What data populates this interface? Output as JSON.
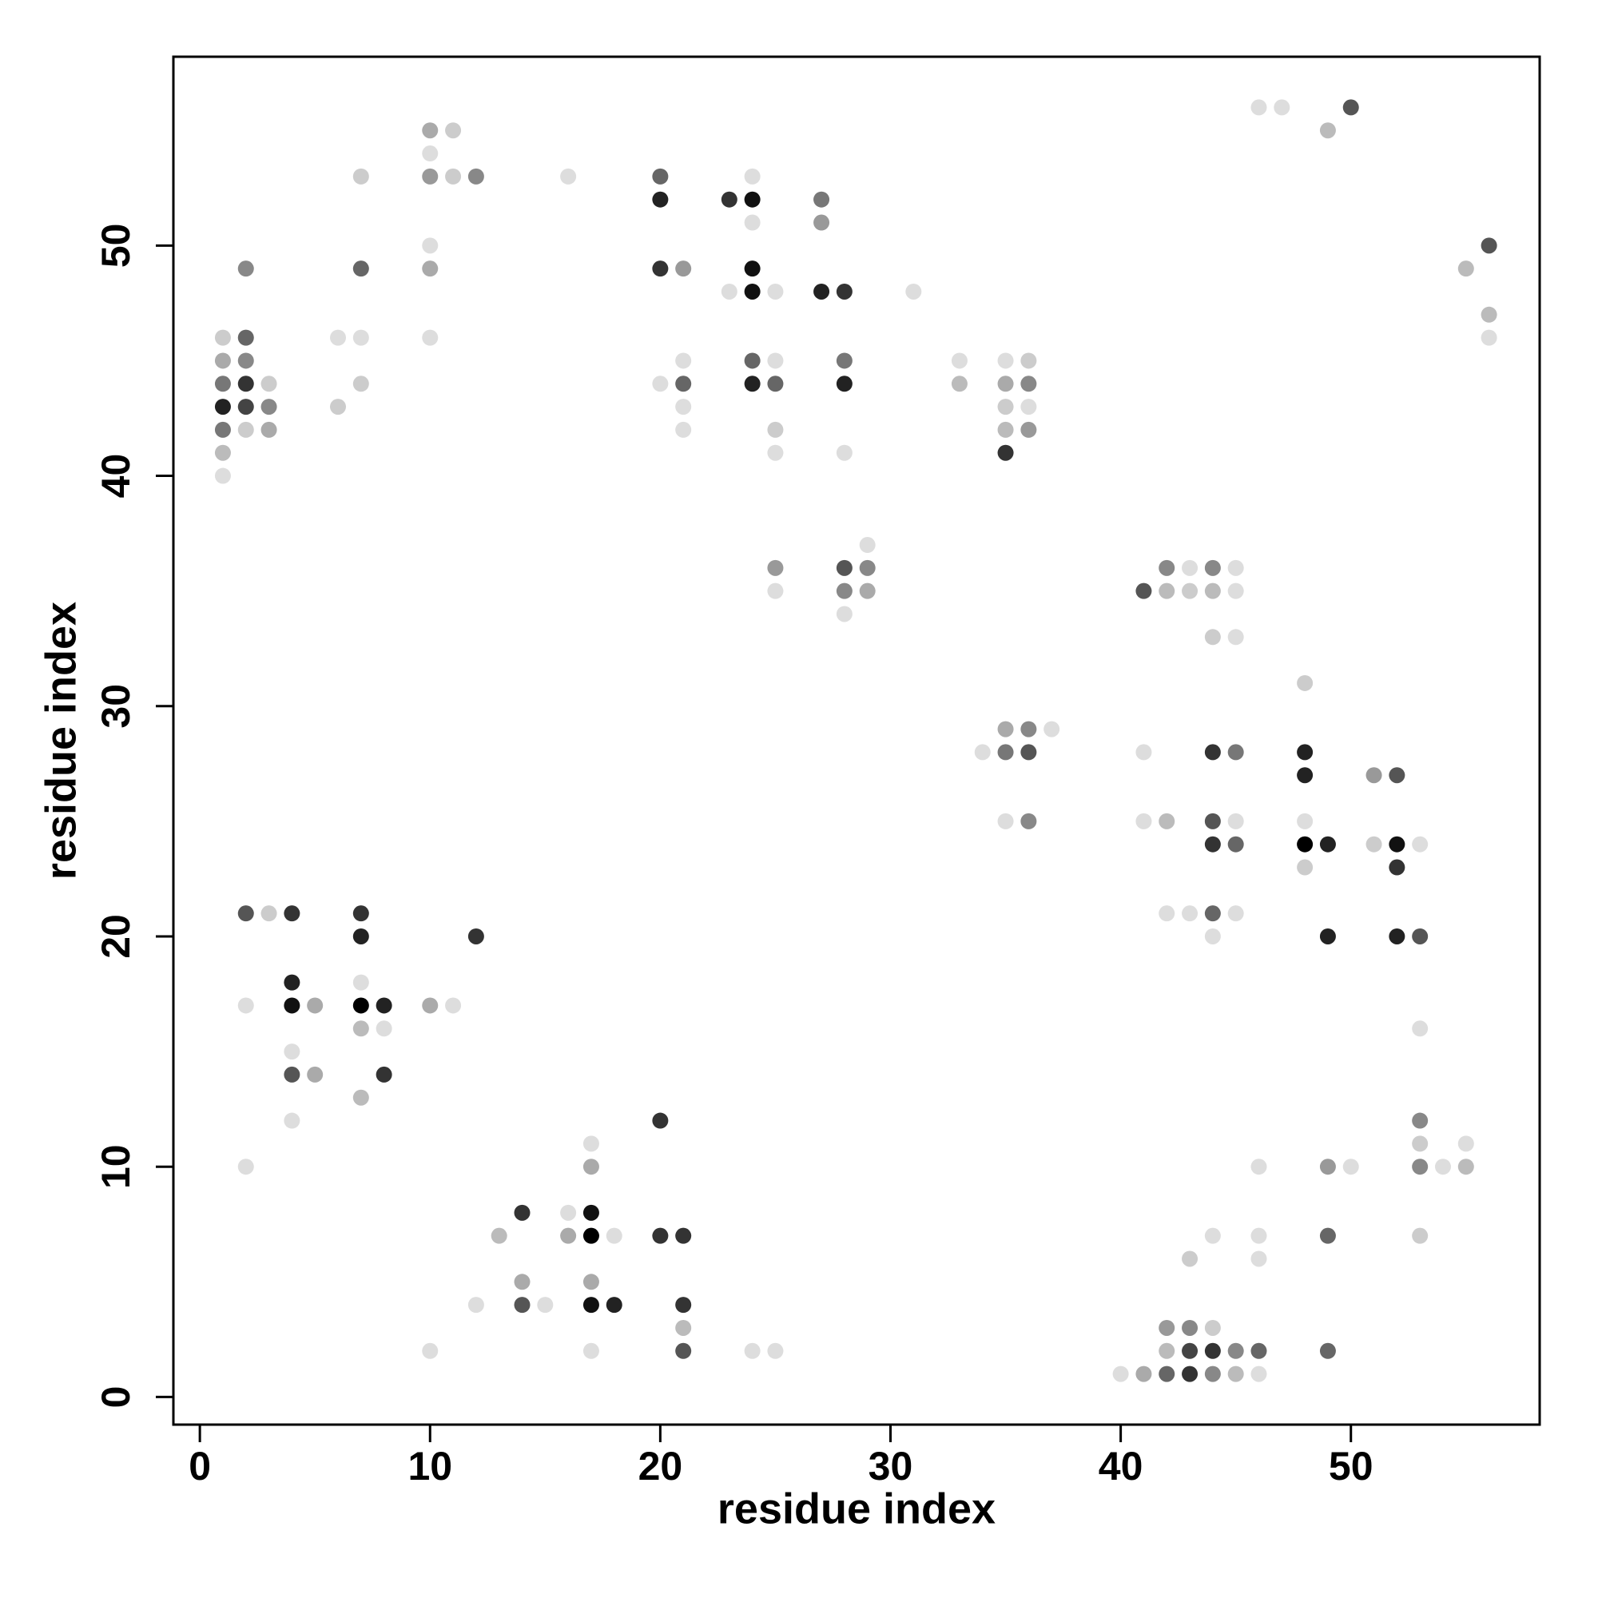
{
  "chart_data": {
    "type": "scatter",
    "xlabel": "residue index",
    "ylabel": "residue index",
    "xlim": [
      -1.15,
      58.2
    ],
    "ylim": [
      -1.2,
      58.2
    ],
    "xticks": [
      0,
      10,
      20,
      30,
      40,
      50
    ],
    "yticks": [
      0,
      10,
      20,
      30,
      40,
      50
    ],
    "x": [
      46,
      47,
      50,
      10,
      11,
      49,
      10,
      7,
      10,
      11,
      12,
      16,
      20,
      24,
      20,
      23,
      24,
      27,
      24,
      27,
      10,
      56,
      2,
      7,
      10,
      20,
      21,
      24,
      55,
      23,
      24,
      25,
      27,
      28,
      31,
      56,
      1,
      2,
      6,
      7,
      10,
      56,
      1,
      2,
      21,
      24,
      25,
      28,
      33,
      35,
      36,
      1,
      2,
      3,
      7,
      20,
      21,
      24,
      25,
      28,
      33,
      35,
      36,
      1,
      2,
      3,
      6,
      21,
      35,
      36,
      1,
      2,
      3,
      21,
      25,
      35,
      36,
      1,
      25,
      28,
      35,
      1,
      29,
      25,
      28,
      29,
      42,
      43,
      44,
      45,
      25,
      28,
      29,
      41,
      42,
      43,
      44,
      45,
      28,
      44,
      45,
      48,
      35,
      36,
      37,
      34,
      35,
      36,
      41,
      44,
      45,
      48,
      48,
      51,
      52,
      35,
      36,
      41,
      42,
      44,
      45,
      48,
      44,
      45,
      48,
      49,
      51,
      52,
      53,
      48,
      52,
      2,
      3,
      4,
      7,
      42,
      43,
      44,
      45,
      7,
      12,
      44,
      49,
      52,
      53,
      4,
      7,
      2,
      4,
      5,
      7,
      8,
      10,
      11,
      7,
      8,
      53,
      4,
      4,
      5,
      8,
      7,
      4,
      20,
      53,
      17,
      53,
      55,
      2,
      17,
      46,
      49,
      50,
      53,
      54,
      55,
      14,
      16,
      17,
      13,
      16,
      17,
      18,
      20,
      21,
      44,
      46,
      49,
      53,
      43,
      46,
      14,
      17,
      12,
      14,
      15,
      17,
      18,
      21,
      21,
      42,
      43,
      44,
      10,
      17,
      21,
      24,
      25,
      42,
      43,
      44,
      45,
      46,
      49,
      40,
      41,
      42,
      43,
      44,
      45,
      46
    ],
    "values": [
      56,
      56,
      56,
      55,
      55,
      55,
      54,
      53,
      53,
      53,
      53,
      53,
      53,
      53,
      52,
      52,
      52,
      52,
      51,
      51,
      50,
      50,
      49,
      49,
      49,
      49,
      49,
      49,
      49,
      48,
      48,
      48,
      48,
      48,
      48,
      47,
      46,
      46,
      46,
      46,
      46,
      46,
      45,
      45,
      45,
      45,
      45,
      45,
      45,
      45,
      45,
      44,
      44,
      44,
      44,
      44,
      44,
      44,
      44,
      44,
      44,
      44,
      44,
      43,
      43,
      43,
      43,
      43,
      43,
      43,
      42,
      42,
      42,
      42,
      42,
      42,
      42,
      41,
      41,
      41,
      41,
      40,
      37,
      36,
      36,
      36,
      36,
      36,
      36,
      36,
      35,
      35,
      35,
      35,
      35,
      35,
      35,
      35,
      34,
      33,
      33,
      31,
      29,
      29,
      29,
      28,
      28,
      28,
      28,
      28,
      28,
      28,
      27,
      27,
      27,
      25,
      25,
      25,
      25,
      25,
      25,
      25,
      24,
      24,
      24,
      24,
      24,
      24,
      24,
      23,
      23,
      21,
      21,
      21,
      21,
      21,
      21,
      21,
      21,
      20,
      20,
      20,
      20,
      20,
      20,
      18,
      18,
      17,
      17,
      17,
      17,
      17,
      17,
      17,
      16,
      16,
      16,
      15,
      14,
      14,
      14,
      13,
      12,
      12,
      12,
      11,
      11,
      11,
      10,
      10,
      10,
      10,
      10,
      10,
      10,
      10,
      8,
      8,
      8,
      7,
      7,
      7,
      7,
      7,
      7,
      7,
      7,
      7,
      7,
      6,
      6,
      5,
      5,
      4,
      4,
      4,
      4,
      4,
      4,
      3,
      3,
      3,
      3,
      2,
      2,
      2,
      2,
      2,
      2,
      2,
      2,
      2,
      2,
      2,
      1,
      1,
      1,
      1,
      1,
      1,
      1
    ],
    "colors": [
      "#ddd",
      "#ddd",
      "#555",
      "#aaa",
      "#ccc",
      "#bbb",
      "#ddd",
      "#ccc",
      "#999",
      "#ccc",
      "#888",
      "#ddd",
      "#666",
      "#ddd",
      "#222",
      "#333",
      "#111",
      "#777",
      "#ddd",
      "#999",
      "#ddd",
      "#555",
      "#888",
      "#666",
      "#aaa",
      "#333",
      "#999",
      "#111",
      "#bbb",
      "#ddd",
      "#111",
      "#ddd",
      "#222",
      "#333",
      "#ddd",
      "#bbb",
      "#ccc",
      "#666",
      "#ddd",
      "#ddd",
      "#ddd",
      "#ddd",
      "#aaa",
      "#888",
      "#ddd",
      "#666",
      "#ddd",
      "#777",
      "#ddd",
      "#ddd",
      "#ccc",
      "#777",
      "#333",
      "#ccc",
      "#ccc",
      "#ddd",
      "#666",
      "#222",
      "#666",
      "#222",
      "#bbb",
      "#aaa",
      "#888",
      "#222",
      "#444",
      "#888",
      "#ccc",
      "#ddd",
      "#ccc",
      "#ddd",
      "#777",
      "#ccc",
      "#aaa",
      "#ddd",
      "#ccc",
      "#bbb",
      "#999",
      "#bbb",
      "#ddd",
      "#ddd",
      "#333",
      "#ddd",
      "#ddd",
      "#999",
      "#555",
      "#888",
      "#888",
      "#ddd",
      "#888",
      "#ddd",
      "#ddd",
      "#888",
      "#aaa",
      "#555",
      "#bbb",
      "#ccc",
      "#bbb",
      "#ddd",
      "#ddd",
      "#ccc",
      "#ddd",
      "#ccc",
      "#aaa",
      "#888",
      "#ddd",
      "#ddd",
      "#777",
      "#555",
      "#ddd",
      "#333",
      "#777",
      "#222",
      "#222",
      "#999",
      "#555",
      "#ddd",
      "#888",
      "#ddd",
      "#bbb",
      "#555",
      "#ddd",
      "#ddd",
      "#333",
      "#666",
      "#000",
      "#222",
      "#ccc",
      "#111",
      "#ddd",
      "#ccc",
      "#333",
      "#555",
      "#ccc",
      "#333",
      "#333",
      "#ddd",
      "#ddd",
      "#666",
      "#ddd",
      "#222",
      "#333",
      "#ddd",
      "#222",
      "#222",
      "#555",
      "#222",
      "#ddd",
      "#ddd",
      "#111",
      "#aaa",
      "#000",
      "#222",
      "#aaa",
      "#ddd",
      "#bbb",
      "#ddd",
      "#ddd",
      "#ddd",
      "#555",
      "#aaa",
      "#333",
      "#bbb",
      "#ddd",
      "#333",
      "#888",
      "#ddd",
      "#ccc",
      "#ddd",
      "#ddd",
      "#aaa",
      "#ddd",
      "#999",
      "#ddd",
      "#888",
      "#ddd",
      "#bbb",
      "#333",
      "#ddd",
      "#111",
      "#bbb",
      "#aaa",
      "#000",
      "#ddd",
      "#333",
      "#333",
      "#ddd",
      "#ddd",
      "#666",
      "#ccc",
      "#ccc",
      "#ddd",
      "#aaa",
      "#aaa",
      "#ddd",
      "#555",
      "#ddd",
      "#111",
      "#222",
      "#333",
      "#bbb",
      "#999",
      "#888",
      "#ccc",
      "#ddd",
      "#ddd",
      "#555",
      "#ddd",
      "#ddd",
      "#bbb",
      "#444",
      "#333",
      "#888",
      "#666",
      "#666",
      "#ddd",
      "#aaa",
      "#666",
      "#333",
      "#888",
      "#bbb",
      "#ddd"
    ]
  }
}
